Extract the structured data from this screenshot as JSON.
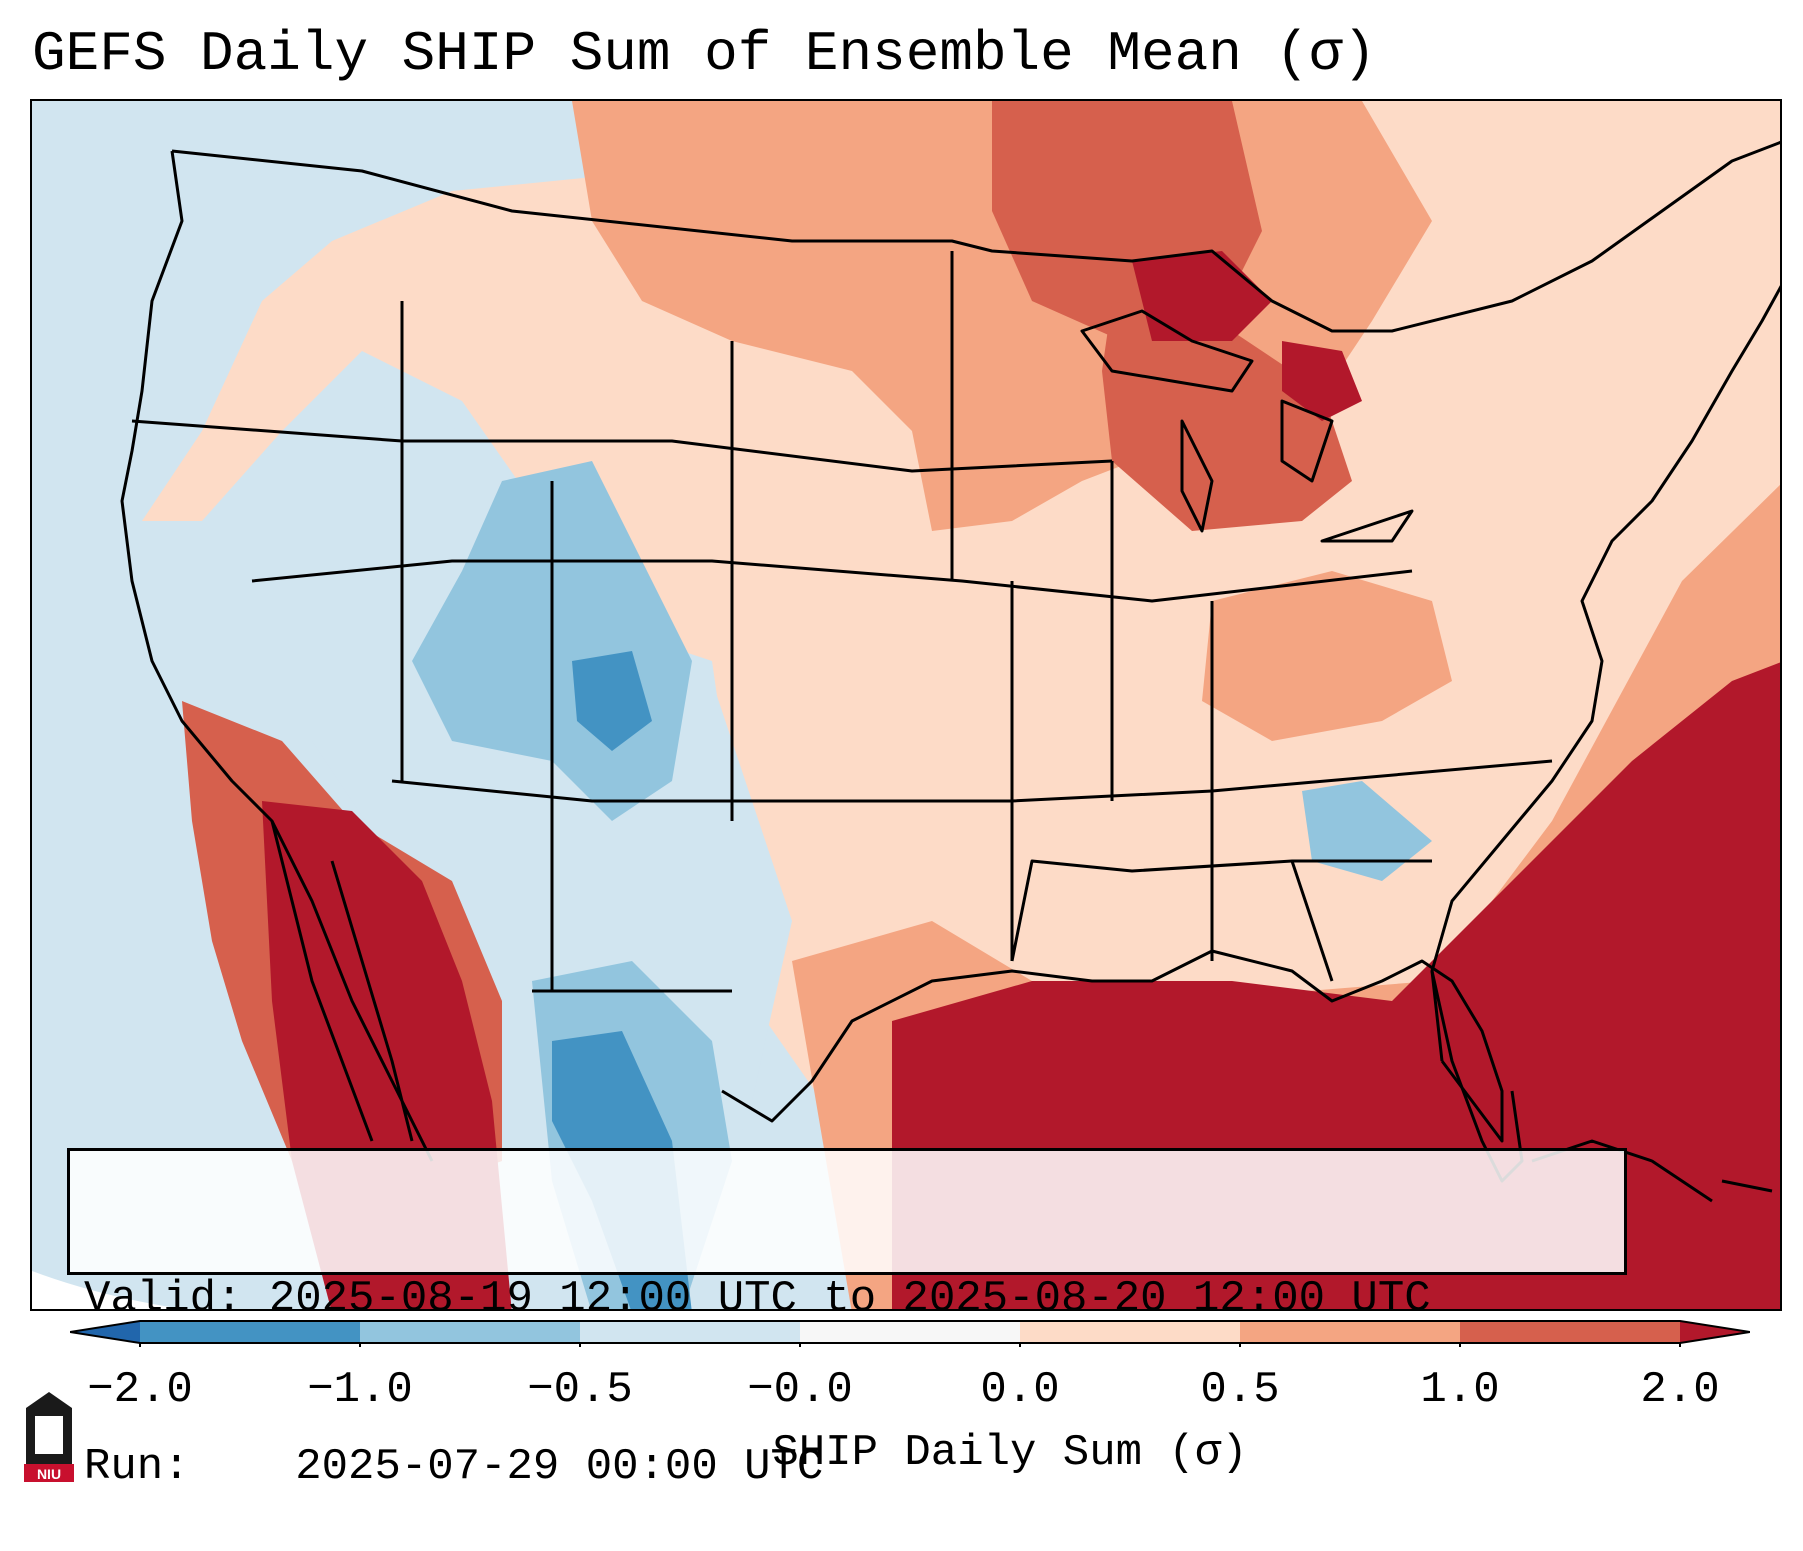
{
  "header": {
    "title": "GEFS Daily SHIP Sum of Ensemble Mean (σ)"
  },
  "info": {
    "valid_label": "Valid:",
    "valid_value": "2025-08-19 12:00 UTC to 2025-08-20 12:00 UTC",
    "run_label": "Run:",
    "run_value": "2025-07-29 00:00 UTC"
  },
  "colorbar": {
    "label": "SHIP Daily Sum (σ)",
    "ticks": [
      "−2.0",
      "−1.0",
      "−0.5",
      "−0.0",
      "0.0",
      "0.5",
      "1.0",
      "2.0"
    ],
    "colors": [
      "#2166ac",
      "#4393c3",
      "#92c5de",
      "#d1e5f0",
      "#f7f7f7",
      "#fddbc7",
      "#f4a582",
      "#d6604d",
      "#b2182b"
    ]
  },
  "logo": {
    "text": "NIU"
  },
  "map": {
    "region": "Contiguous United States",
    "ocean_color": "#d1e5f0"
  }
}
